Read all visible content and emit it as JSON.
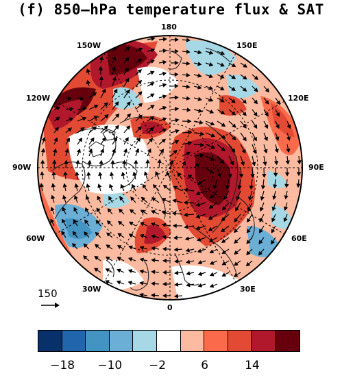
{
  "title": "(f) 850–hPa temperature flux & SAT",
  "longitude_labels": {
    "top": "180",
    "bottom": "0",
    "left": "90W",
    "right": "90E",
    "upper_left_1": "150W",
    "upper_left_2": "120W",
    "upper_right_1": "150E",
    "upper_right_2": "120E",
    "lower_left_1": "60W",
    "lower_left_2": "30W",
    "lower_right_1": "60E",
    "lower_right_2": "30E"
  },
  "reference_vector": {
    "value": "150",
    "icon": "arrow-right-icon"
  },
  "colorbar": {
    "colors": [
      "#08306b",
      "#2166ac",
      "#4393c3",
      "#6baed6",
      "#a6d8e6",
      "#ffffff",
      "#fcbba1",
      "#fb6a4a",
      "#e34a33",
      "#b2182b",
      "#67000d"
    ],
    "tick_labels": [
      "−18",
      "−10",
      "−2",
      "6",
      "14"
    ]
  }
}
